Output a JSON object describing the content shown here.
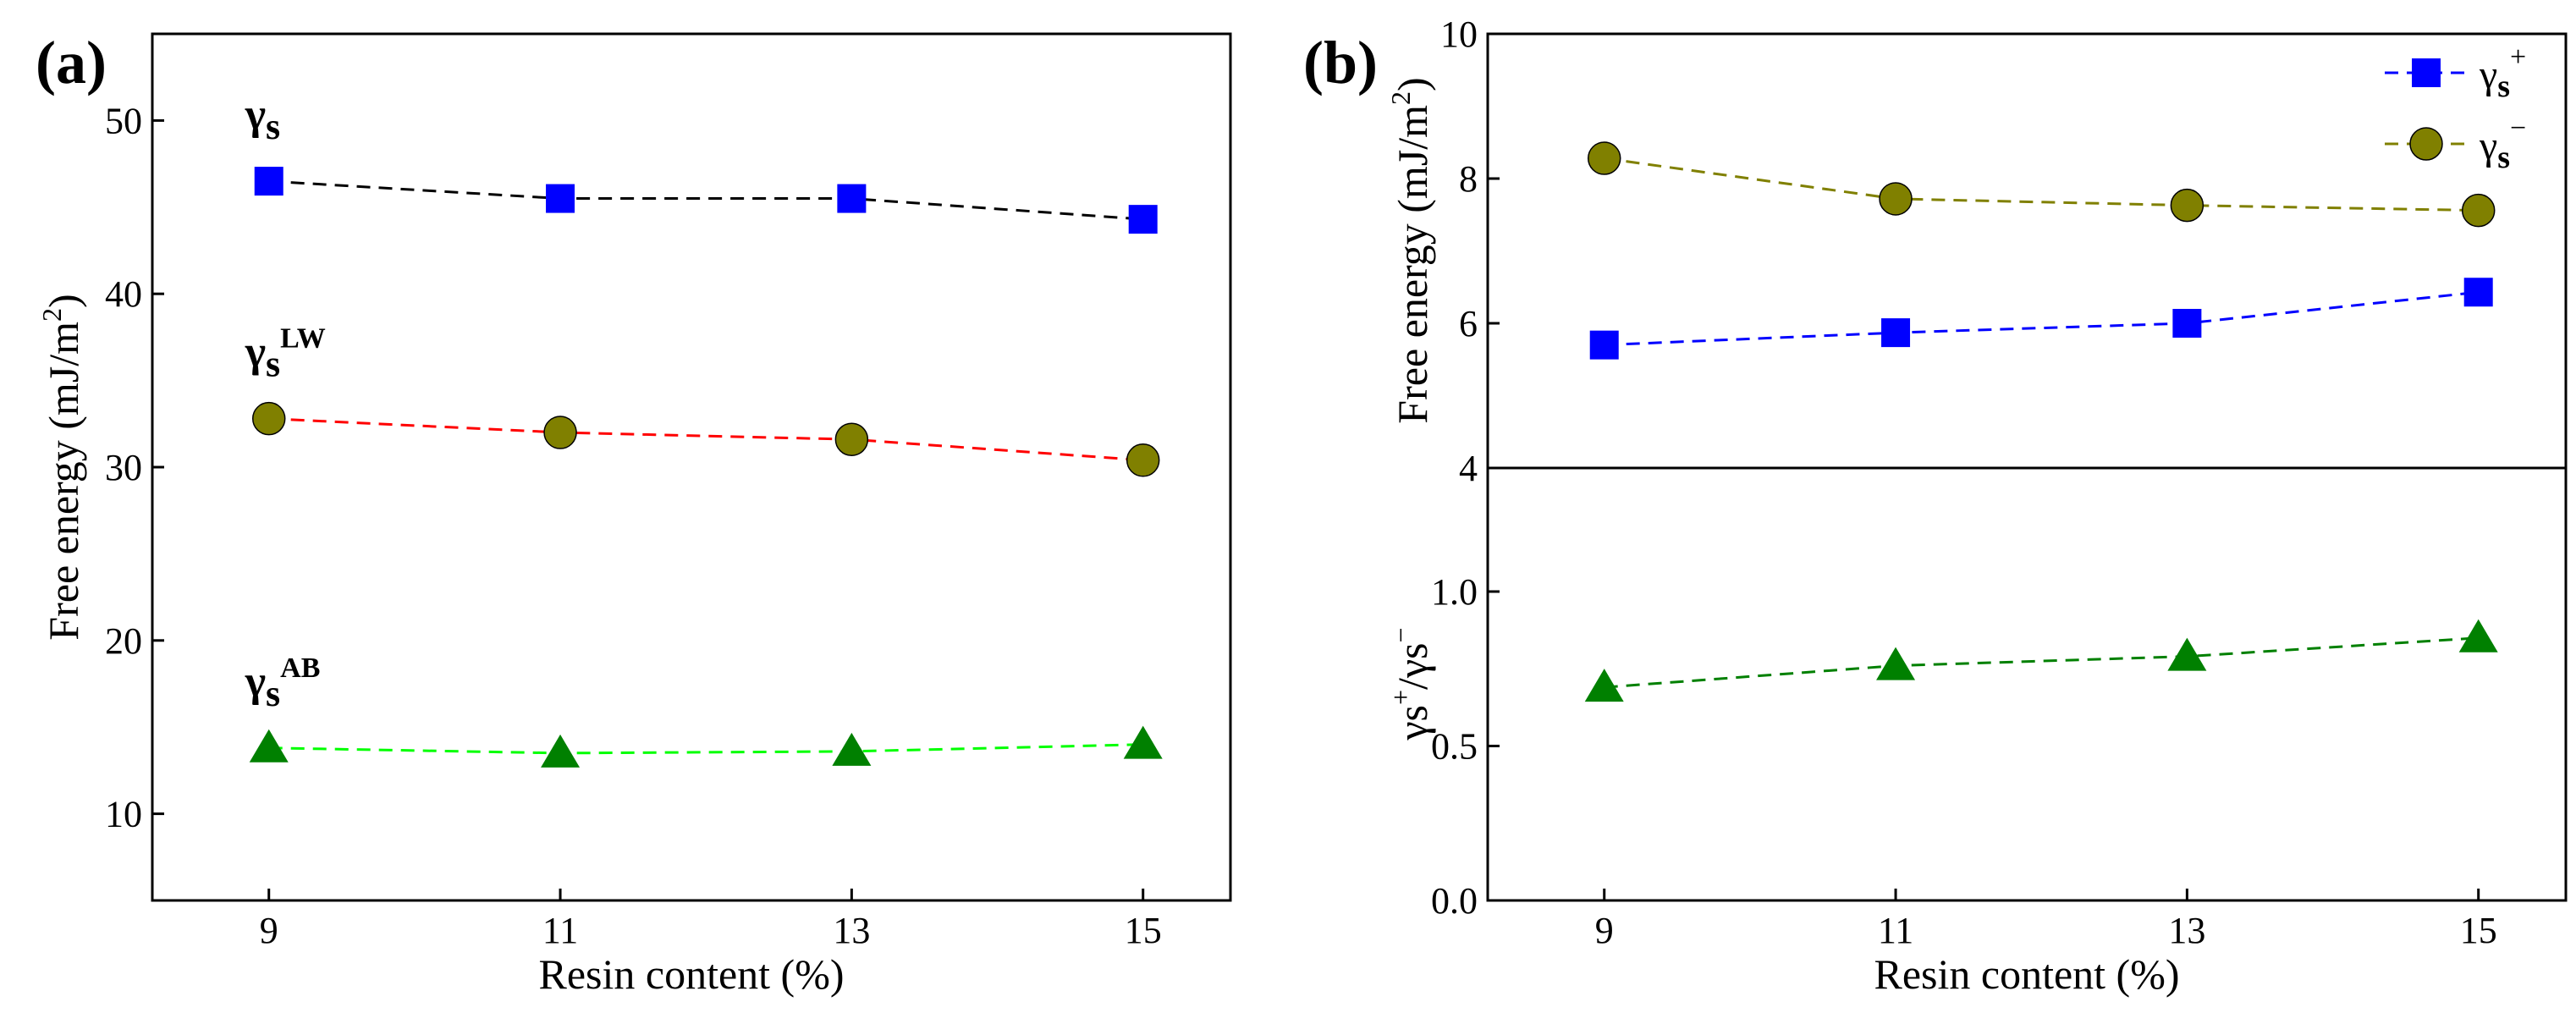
{
  "chart_data": [
    {
      "panel_label": "(a)",
      "type": "line",
      "xlabel": "Resin content (%)",
      "ylabel": "Free energy (mJ/m",
      "ylabel_sup": "2",
      "ylabel_close": ")",
      "xlim": [
        8.2,
        15.6
      ],
      "ylim": [
        5,
        55
      ],
      "xticks": [
        9,
        11,
        13,
        15
      ],
      "yticks": [
        10,
        20,
        30,
        40,
        50
      ],
      "x": [
        9,
        11,
        13,
        15
      ],
      "series": [
        {
          "name": "γs",
          "label_base": "γ",
          "label_sub": "s",
          "label_sup": "",
          "values": [
            46.5,
            45.5,
            45.5,
            44.3
          ],
          "line_color": "#000000",
          "marker": "square",
          "marker_color": "#0000ff"
        },
        {
          "name": "γsLW",
          "label_base": "γ",
          "label_sub": "s",
          "label_sup": "LW",
          "values": [
            32.8,
            32.0,
            31.6,
            30.4
          ],
          "line_color": "#ff0000",
          "marker": "circle",
          "marker_color": "#808000"
        },
        {
          "name": "γsAB",
          "label_base": "γ",
          "label_sub": "s",
          "label_sup": "AB",
          "values": [
            13.8,
            13.5,
            13.6,
            14.0
          ],
          "line_color": "#00ff00",
          "marker": "triangle",
          "marker_color": "#008000"
        }
      ]
    },
    {
      "panel_label": "(b)",
      "type": "line",
      "xlabel": "Resin content (%)",
      "xlim": [
        8.2,
        15.6
      ],
      "xticks": [
        9,
        11,
        13,
        15
      ],
      "x": [
        9,
        11,
        13,
        15
      ],
      "top": {
        "ylabel": "Free energy (mJ/m",
        "ylabel_sup": "2",
        "ylabel_close": ")",
        "ylim": [
          4,
          10
        ],
        "yticks": [
          4,
          6,
          8,
          10
        ],
        "legend_position": "top-right",
        "series": [
          {
            "name": "γs+",
            "label_base": "γ",
            "label_sub": "s",
            "label_sup": "+",
            "values": [
              5.7,
              5.87,
              6.0,
              6.43
            ],
            "line_color": "#0000ff",
            "marker": "square",
            "marker_color": "#0000ff"
          },
          {
            "name": "γs−",
            "label_base": "γ",
            "label_sub": "s",
            "label_sup": "−",
            "values": [
              8.28,
              7.72,
              7.63,
              7.56
            ],
            "line_color": "#808000",
            "marker": "circle",
            "marker_color": "#808000"
          }
        ]
      },
      "bottom": {
        "ylabel_parts": [
          "γs",
          "+",
          "/γs",
          "−"
        ],
        "ylim": [
          0.0,
          1.4
        ],
        "yticks": [
          0.0,
          0.5,
          1.0
        ],
        "ytick_labels": [
          "0.0",
          "0.5",
          "1.0"
        ],
        "series": [
          {
            "name": "γs+/γs−",
            "values": [
              0.69,
              0.76,
              0.79,
              0.85
            ],
            "line_color": "#008000",
            "marker": "triangle",
            "marker_color": "#008000"
          }
        ]
      }
    }
  ]
}
